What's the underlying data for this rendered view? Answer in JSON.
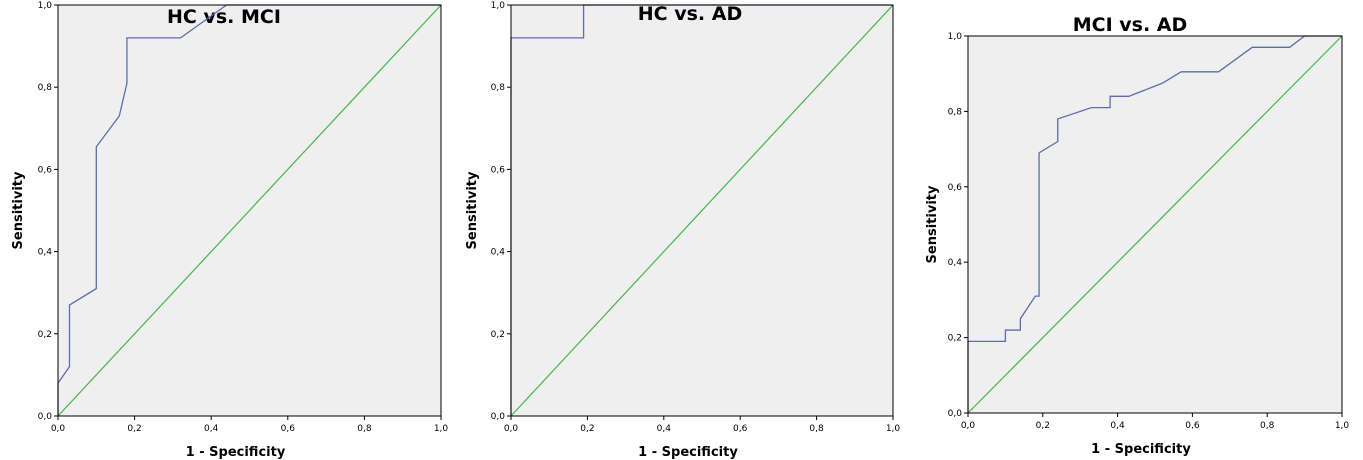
{
  "chart_data": [
    {
      "type": "line",
      "title": "HC vs. MCI",
      "xlabel": "1 - Specificity",
      "ylabel": "Sensitivity",
      "xlim": [
        0,
        1
      ],
      "ylim": [
        0,
        1
      ],
      "xticks": [
        "0,0",
        "0,2",
        "0,4",
        "0,6",
        "0,8",
        "1,0"
      ],
      "yticks": [
        "0,0",
        "0,2",
        "0,4",
        "0,6",
        "0,8",
        "1,0"
      ],
      "grid": false,
      "colors": {
        "roc": "#5a6eab",
        "reference": "#43b649",
        "plot_bg": "#efefef"
      },
      "series": [
        {
          "x": [
            0,
            0,
            0.03,
            0.03,
            0.1,
            0.1,
            0.16,
            0.18,
            0.18,
            0.32,
            0.44,
            1.0
          ],
          "y": [
            0,
            0.08,
            0.12,
            0.27,
            0.31,
            0.655,
            0.73,
            0.81,
            0.92,
            0.92,
            1.0,
            1.0
          ]
        },
        {
          "x": [
            0,
            1
          ],
          "y": [
            0,
            1
          ]
        }
      ]
    },
    {
      "type": "line",
      "title": "HC vs. AD",
      "xlabel": "1 - Specificity",
      "ylabel": "Sensitivity",
      "xlim": [
        0,
        1
      ],
      "ylim": [
        0,
        1
      ],
      "xticks": [
        "0,0",
        "0,2",
        "0,4",
        "0,6",
        "0,8",
        "1,0"
      ],
      "yticks": [
        "0,0",
        "0,2",
        "0,4",
        "0,6",
        "0,8",
        "1,0"
      ],
      "grid": false,
      "colors": {
        "roc": "#5a6eab",
        "reference": "#43b649",
        "plot_bg": "#efefef"
      },
      "series": [
        {
          "x": [
            0,
            0,
            0.19,
            0.19,
            1.0
          ],
          "y": [
            0,
            0.92,
            0.92,
            1.0,
            1.0
          ]
        },
        {
          "x": [
            0,
            1
          ],
          "y": [
            0,
            1
          ]
        }
      ]
    },
    {
      "type": "line",
      "title": "MCI vs. AD",
      "xlabel": "1 - Specificity",
      "ylabel": "Sensitivity",
      "xlim": [
        0,
        1
      ],
      "ylim": [
        0,
        1
      ],
      "xticks": [
        "0,0",
        "0,2",
        "0,4",
        "0,6",
        "0,8",
        "1,0"
      ],
      "yticks": [
        "0,0",
        "0,2",
        "0,4",
        "0,6",
        "0,8",
        "1,0"
      ],
      "grid": false,
      "colors": {
        "roc": "#5a6eab",
        "reference": "#43b649",
        "plot_bg": "#efefef"
      },
      "series": [
        {
          "x": [
            0,
            0,
            0.1,
            0.1,
            0.14,
            0.14,
            0.18,
            0.19,
            0.19,
            0.24,
            0.24,
            0.33,
            0.38,
            0.38,
            0.43,
            0.52,
            0.57,
            0.67,
            0.76,
            0.86,
            0.9,
            1.0
          ],
          "y": [
            0,
            0.19,
            0.19,
            0.22,
            0.22,
            0.25,
            0.31,
            0.31,
            0.69,
            0.72,
            0.78,
            0.81,
            0.81,
            0.84,
            0.84,
            0.875,
            0.905,
            0.905,
            0.97,
            0.97,
            1.0,
            1.0
          ]
        },
        {
          "x": [
            0,
            1
          ],
          "y": [
            0,
            1
          ]
        }
      ]
    }
  ]
}
